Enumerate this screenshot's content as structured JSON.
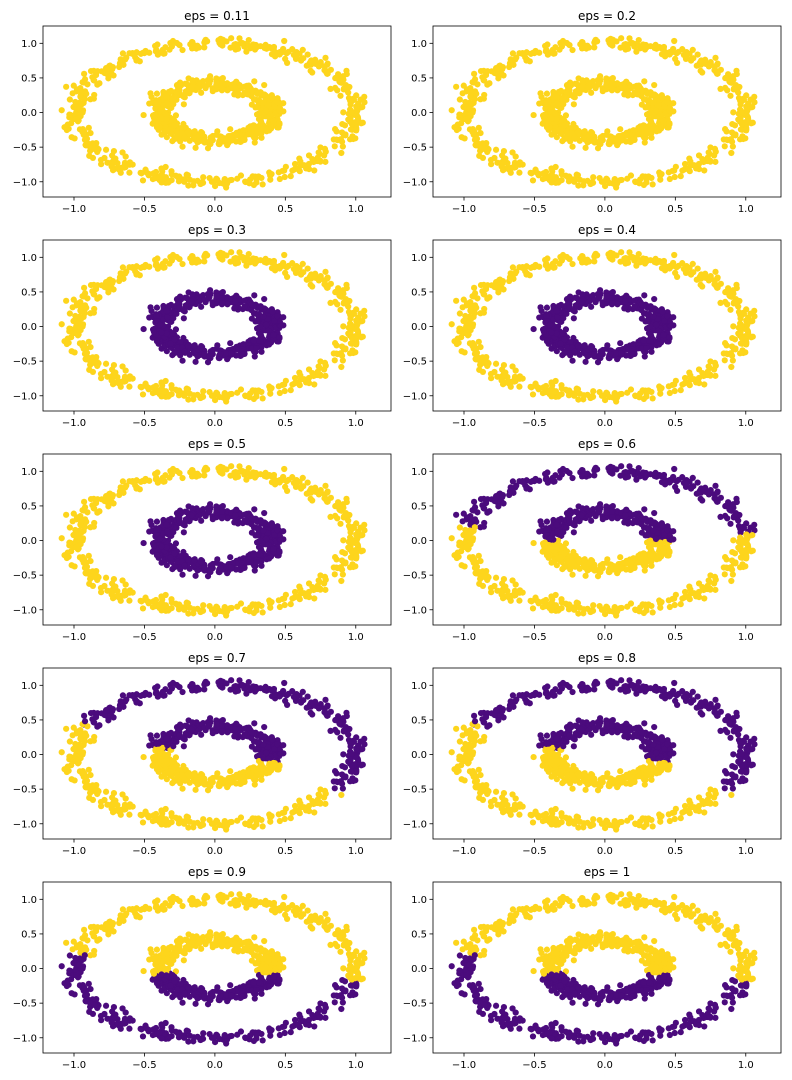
{
  "figure": {
    "description": "2 columns x 5 rows of scatter plots of a two-ring circles dataset colored by DBSCAN cluster for different eps values"
  },
  "chart_data": {
    "type": "scatter",
    "colors": {
      "yellow": "#fdd51c",
      "purple": "#4b0b7d"
    },
    "dataset": {
      "outer_ring": {
        "radius": 1.0,
        "noise": 0.05,
        "points": 500
      },
      "inner_ring": {
        "radius_x": 0.4,
        "radius_y": 0.4,
        "noise": 0.05,
        "points": 500
      }
    },
    "x_ticks": [
      -1.0,
      -0.5,
      0.0,
      0.5,
      1.0
    ],
    "x_tick_labels": [
      "−1.0",
      "−0.5",
      "0.0",
      "0.5",
      "1.0"
    ],
    "y_ticks": [
      -1.0,
      -0.5,
      0.0,
      0.5,
      1.0
    ],
    "y_tick_labels": [
      "−1.0",
      "−0.5",
      "0.0",
      "0.5",
      "1.0"
    ],
    "xlim": [
      -1.22,
      1.25
    ],
    "ylim": [
      -1.22,
      1.25
    ],
    "panels": [
      {
        "title": "eps = 0.11",
        "coloring": "all-yellow"
      },
      {
        "title": "eps = 0.2",
        "coloring": "all-yellow"
      },
      {
        "title": "eps = 0.3",
        "coloring": "outer-yellow-inner-purple"
      },
      {
        "title": "eps = 0.4",
        "coloring": "outer-yellow-inner-purple"
      },
      {
        "title": "eps = 0.5",
        "coloring": "outer-yellow-inner-purple"
      },
      {
        "title": "eps = 0.6",
        "coloring": "top-purple-bottom-yellow"
      },
      {
        "title": "eps = 0.7",
        "coloring": "right-purple-left-yellow"
      },
      {
        "title": "eps = 0.8",
        "coloring": "right-purple-left-yellow"
      },
      {
        "title": "eps = 0.9",
        "coloring": "top-yellow-bottom-purple"
      },
      {
        "title": "eps = 1",
        "coloring": "top-yellow-bottom-purple"
      }
    ]
  }
}
